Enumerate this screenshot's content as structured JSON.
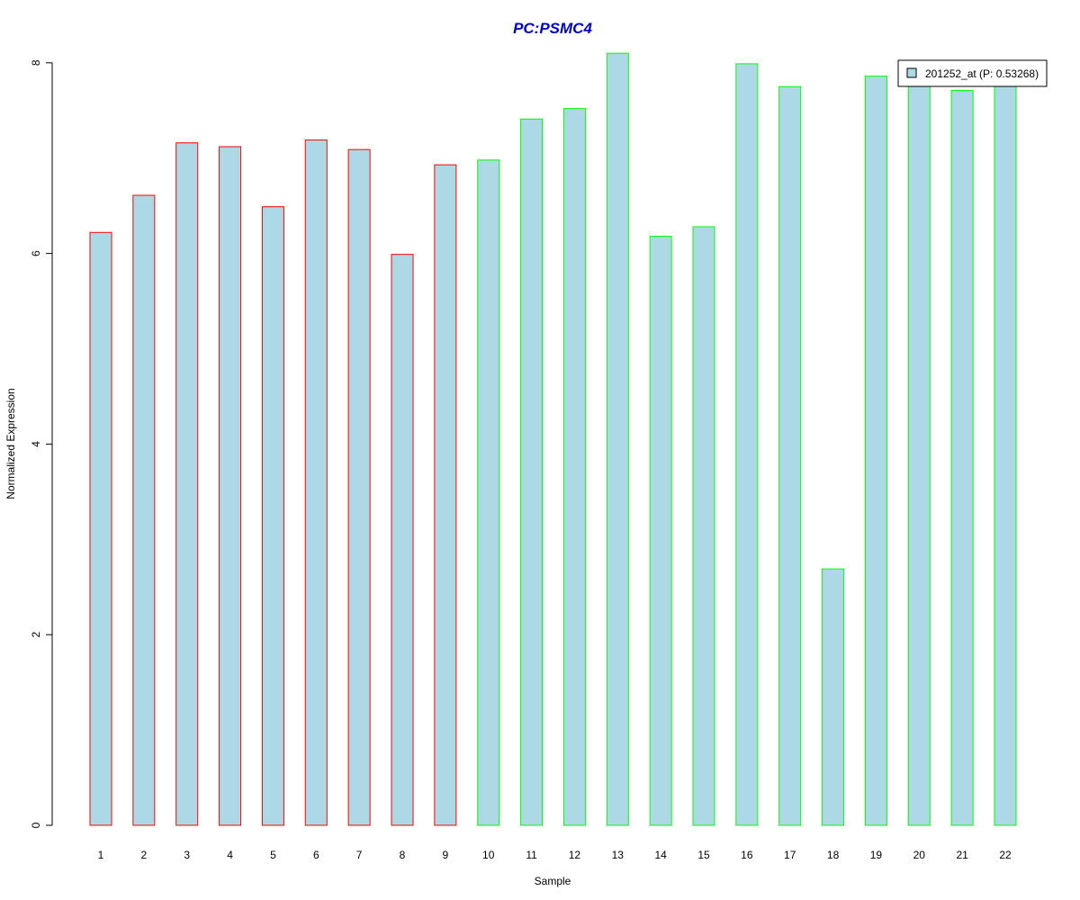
{
  "chart_data": {
    "type": "bar",
    "title": "PC:PSMC4",
    "xlabel": "Sample",
    "ylabel": "Normalized Expression",
    "categories": [
      "1",
      "2",
      "3",
      "4",
      "5",
      "6",
      "7",
      "8",
      "9",
      "10",
      "11",
      "12",
      "13",
      "14",
      "15",
      "16",
      "17",
      "18",
      "19",
      "20",
      "21",
      "22"
    ],
    "values": [
      6.22,
      6.61,
      7.16,
      7.12,
      6.49,
      7.19,
      7.09,
      5.99,
      6.93,
      6.98,
      7.41,
      7.52,
      8.1,
      6.18,
      6.28,
      7.99,
      7.75,
      2.69,
      7.86,
      7.89,
      7.71,
      7.95
    ],
    "bar_fill": "#add8e6",
    "group_colors": [
      "#ff0000",
      "#ff0000",
      "#ff0000",
      "#ff0000",
      "#ff0000",
      "#ff0000",
      "#ff0000",
      "#ff0000",
      "#ff0000",
      "#00ff00",
      "#00ff00",
      "#00ff00",
      "#00ff00",
      "#00ff00",
      "#00ff00",
      "#00ff00",
      "#00ff00",
      "#00ff00",
      "#00ff00",
      "#00ff00",
      "#00ff00",
      "#00ff00"
    ],
    "title_color": "#0000cc",
    "ylim": [
      0,
      8.1
    ],
    "yticks": [
      0,
      2,
      4,
      6,
      8
    ],
    "grid": false,
    "legend": {
      "label": "201252_at (P: 0.53268)",
      "placement": "top-right"
    }
  }
}
